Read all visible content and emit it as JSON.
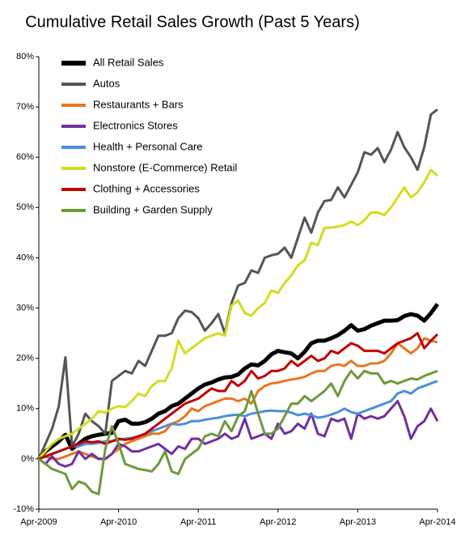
{
  "chart_data": {
    "type": "line",
    "title": "Cumulative Retail Sales Growth (Past 5 Years)",
    "categories": [
      "Apr-2009",
      null,
      null,
      null,
      null,
      null,
      null,
      null,
      null,
      null,
      null,
      null,
      "Apr-2010",
      null,
      null,
      null,
      null,
      null,
      null,
      null,
      null,
      null,
      null,
      null,
      "Apr-2011",
      null,
      null,
      null,
      null,
      null,
      null,
      null,
      null,
      null,
      null,
      null,
      "Apr-2012",
      null,
      null,
      null,
      null,
      null,
      null,
      null,
      null,
      null,
      null,
      null,
      "Apr-2013",
      null,
      null,
      null,
      null,
      null,
      null,
      null,
      null,
      null,
      null,
      null,
      "Apr-2014"
    ],
    "ylim": [
      -10,
      80
    ],
    "yticks": [
      {
        "value": -10,
        "label": "-10%"
      },
      {
        "value": 0,
        "label": "0%"
      },
      {
        "value": 10,
        "label": "10%"
      },
      {
        "value": 20,
        "label": "20%"
      },
      {
        "value": 30,
        "label": "30%"
      },
      {
        "value": 40,
        "label": "40%"
      },
      {
        "value": 50,
        "label": "50%"
      },
      {
        "value": 60,
        "label": "60%"
      },
      {
        "value": 70,
        "label": "70%"
      },
      {
        "value": 80,
        "label": "80%"
      }
    ],
    "grid": false,
    "legend": "upper left",
    "series": [
      {
        "name": "All Retail Sales",
        "color": "#000000",
        "values": [
          0,
          1.5,
          2.5,
          3.5,
          4.8,
          2,
          3,
          4,
          4.5,
          4.8,
          5,
          5.2,
          7.5,
          7.8,
          7,
          7,
          7.3,
          8,
          9,
          9.5,
          10.5,
          11,
          12,
          13,
          14,
          14.8,
          15.2,
          15.8,
          16.2,
          16.3,
          16.8,
          18,
          18.8,
          18.6,
          19.5,
          20.8,
          21.5,
          21.2,
          21,
          20,
          21.3,
          23,
          23.5,
          23.5,
          24,
          24.6,
          25.5,
          26.6,
          25.5,
          25.8,
          26.5,
          27,
          27.5,
          27.5,
          27.6,
          28.4,
          28.8,
          28.5,
          27.5,
          29,
          30.8
        ]
      },
      {
        "name": "Autos",
        "color": "#555555",
        "values": [
          0,
          3,
          6,
          10.5,
          20.2,
          2.5,
          5,
          9,
          7.5,
          6.5,
          5,
          15.5,
          16.5,
          17.5,
          17,
          19.5,
          18.5,
          21.5,
          24.5,
          24.5,
          25,
          28,
          29.5,
          29.2,
          28,
          25.5,
          27,
          28.8,
          25,
          31,
          34.5,
          35,
          37.5,
          37,
          40,
          40.5,
          40.8,
          42,
          40,
          44,
          48,
          45,
          49,
          51.3,
          51.5,
          54,
          52,
          54.5,
          57,
          61,
          60.5,
          61.8,
          59,
          61.5,
          65,
          62,
          60,
          57.5,
          62,
          68.5,
          69.5
        ]
      },
      {
        "name": "Restaurants + Bars",
        "color": "#e8761e",
        "values": [
          0,
          0.5,
          0,
          0,
          0.5,
          1,
          1.5,
          1,
          0.5,
          0,
          0,
          1,
          2,
          3,
          3.5,
          4,
          4.5,
          5,
          5,
          5.5,
          7,
          7.5,
          8.5,
          10,
          9.5,
          10.5,
          11,
          11.5,
          12,
          12,
          11.5,
          12,
          11,
          13.5,
          14.5,
          15,
          15.2,
          15.5,
          15.8,
          16,
          16.3,
          17,
          17.5,
          17.5,
          18.5,
          18.8,
          18.5,
          19.5,
          18.5,
          18.5,
          19,
          19,
          19.5,
          21,
          23,
          22,
          21,
          22,
          24,
          23.5,
          23.2
        ]
      },
      {
        "name": "Electronics Stores",
        "color": "#7030a0",
        "values": [
          0,
          -1,
          0.5,
          -1,
          -1.5,
          -1,
          1.5,
          0,
          1,
          0,
          0,
          1,
          3,
          2.5,
          1.5,
          1.5,
          2,
          2.5,
          3,
          2,
          1,
          2.5,
          2,
          4,
          4,
          3,
          3.5,
          4,
          5,
          4,
          4.5,
          8,
          4,
          4.5,
          5,
          4,
          7,
          5,
          5.5,
          7,
          6,
          9,
          5,
          4.5,
          8,
          7.5,
          8,
          4,
          9,
          8,
          8.5,
          8,
          8.5,
          10,
          11.5,
          8.5,
          4,
          6.5,
          7.5,
          10,
          7.5
        ]
      },
      {
        "name": "Health + Personal Care",
        "color": "#4a90d9",
        "values": [
          0,
          0.5,
          1,
          1.5,
          2,
          2.5,
          2.5,
          3,
          3,
          3.2,
          3.5,
          3.5,
          3.8,
          4,
          4.2,
          4.5,
          5,
          5.5,
          6,
          6.5,
          7,
          6.8,
          7,
          7.5,
          7.5,
          7.8,
          8,
          8.2,
          8.5,
          8.7,
          8.8,
          8.5,
          9,
          9.2,
          9.5,
          9.6,
          9.5,
          9.5,
          9.2,
          8.7,
          9,
          8.7,
          8.2,
          8.4,
          8.8,
          9.3,
          10,
          9.3,
          9,
          9.5,
          10,
          10.5,
          11,
          11.5,
          13,
          13.5,
          13,
          14,
          14.5,
          15,
          15.5
        ]
      },
      {
        "name": "Nonstore (E-Commerce) Retail",
        "color": "#d4dc1e",
        "values": [
          0,
          1.5,
          3,
          4,
          4.5,
          5,
          6,
          7,
          8,
          9.5,
          9.2,
          10,
          10.5,
          10.3,
          11.5,
          13,
          12.5,
          14.5,
          15.5,
          15.5,
          18,
          23.5,
          21,
          22,
          23,
          24,
          24.5,
          25,
          24.5,
          30.5,
          31.5,
          29,
          28.5,
          30,
          31,
          33.5,
          33,
          35,
          36.5,
          38.5,
          39.5,
          43,
          42.5,
          46,
          46,
          46.2,
          46.5,
          47.2,
          46.5,
          47.5,
          49,
          49,
          48.5,
          50,
          52,
          54,
          52,
          53,
          55,
          57.5,
          56.3
        ]
      },
      {
        "name": "Clothing + Accessories",
        "color": "#c00000",
        "values": [
          0,
          0.5,
          1,
          1.5,
          2,
          2.5,
          3,
          3.5,
          3.3,
          3.5,
          3,
          3.5,
          4,
          3.8,
          4,
          4.5,
          5,
          6,
          7,
          8,
          9,
          10,
          11,
          11.5,
          12,
          13,
          14,
          13.5,
          13.5,
          15.5,
          14.5,
          15.5,
          17.5,
          16,
          16.5,
          17.5,
          17.5,
          18,
          19.5,
          18.5,
          19.5,
          20.5,
          19.5,
          20,
          21.5,
          21,
          22,
          23,
          22.5,
          21.5,
          21.5,
          21.5,
          21,
          22,
          23,
          23.5,
          24,
          25,
          22,
          23.5,
          24.8
        ]
      },
      {
        "name": "Building + Garden Supply",
        "color": "#6d9a3a",
        "values": [
          0,
          -1,
          -2,
          -2.5,
          -3,
          -6,
          -4.5,
          -5,
          -6.5,
          -7,
          2,
          6.5,
          3,
          -1,
          -1.5,
          -2,
          -2.2,
          -2.5,
          -1,
          1.5,
          -2.5,
          -3,
          0,
          1,
          2,
          4.5,
          5,
          4.5,
          7.5,
          5.5,
          8.5,
          9.5,
          13.5,
          9,
          5,
          5,
          6,
          8.5,
          11,
          11,
          12.5,
          11.5,
          12.5,
          13.5,
          15,
          12.5,
          15.5,
          17.5,
          16,
          17.5,
          17,
          17,
          15,
          15.5,
          15,
          15.5,
          16,
          15.8,
          16.5,
          17,
          17.5
        ]
      }
    ]
  }
}
